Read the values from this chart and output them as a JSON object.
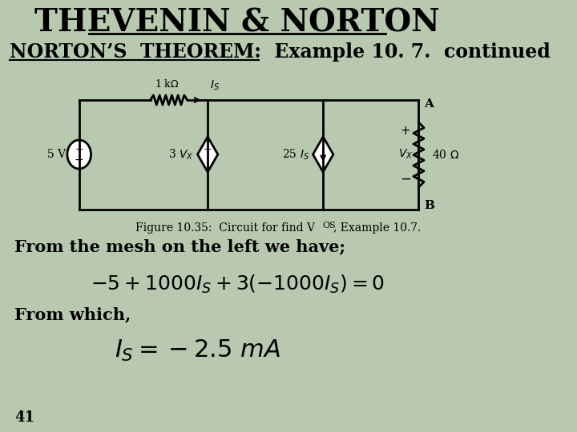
{
  "bg_color": "#b8c9b0",
  "title": "THEVENIN & NORTON",
  "subtitle": "NORTON’S  THEOREM:  Example 10. 7.  continued",
  "text_mesh": "From the mesh on the left we have;",
  "text_which": "From which,",
  "page_num": "41",
  "title_fontsize": 28,
  "subtitle_fontsize": 17,
  "body_fontsize": 15
}
